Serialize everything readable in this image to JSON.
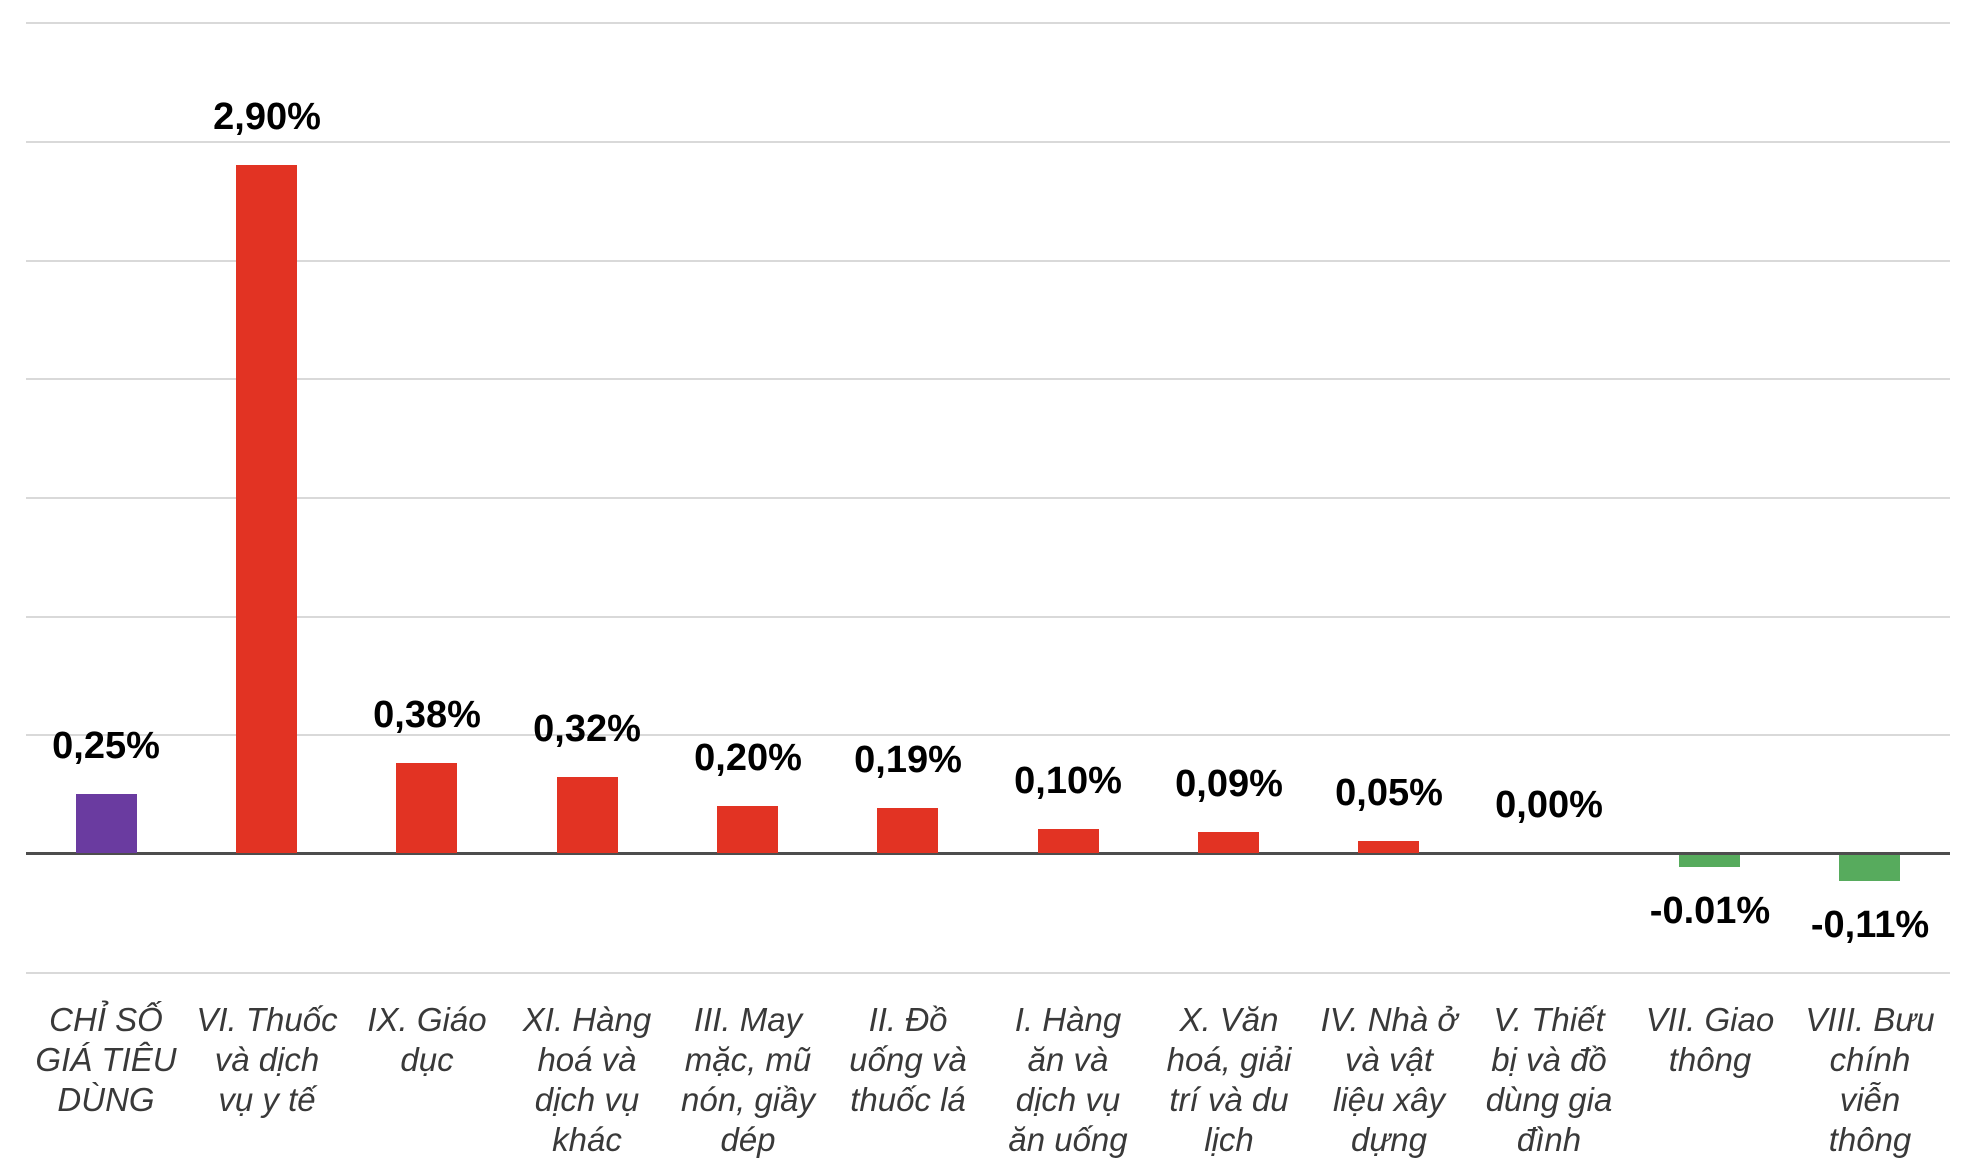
{
  "chart_data": {
    "type": "bar",
    "title": "",
    "xlabel": "",
    "ylabel": "",
    "legend": "none",
    "grid": true,
    "grid_step": 0.5,
    "ylim": [
      -0.5,
      3.5
    ],
    "zero_axis": true,
    "unit": "%",
    "categories": [
      "CHỈ SỐ GIÁ TIÊU DÙNG",
      "VI. Thuốc và dịch vụ y tế",
      "IX. Giáo dục",
      "XI. Hàng hoá và dịch vụ khác",
      "III. May mặc, mũ nón, giầy dép",
      "II. Đồ uống và thuốc lá",
      "I. Hàng ăn và dịch vụ ăn uống",
      "X. Văn hoá, giải trí và du lịch",
      "IV. Nhà ở và vật liệu xây dựng",
      "V. Thiết bị và đồ dùng gia đình",
      "VII. Giao thông",
      "VIII. Bưu chính viễn thông"
    ],
    "category_tick_lines": [
      "CHỈ SỐ\nGIÁ TIÊU\nDÙNG",
      "VI. Thuốc\nvà dịch\nvụ y tế",
      "IX. Giáo\ndục",
      "XI. Hàng\nhoá và\ndịch vụ\nkhác",
      "III. May\nmặc, mũ\nnón, giầy\ndép",
      "II. Đồ\nuống và\nthuốc lá",
      "I. Hàng\năn và\ndịch vụ\năn uống",
      "X. Văn\nhoá, giải\ntrí và du\nlịch",
      "IV. Nhà ở\nvà vật\nliệu xây\ndựng",
      "V. Thiết\nbị và đồ\ndùng gia\nđình",
      "VII. Giao\nthông",
      "VIII. Bưu\nchính\nviễn\nthông"
    ],
    "values": [
      0.25,
      2.9,
      0.38,
      0.32,
      0.2,
      0.19,
      0.1,
      0.09,
      0.05,
      0.0,
      -0.01,
      -0.11
    ],
    "data_labels": [
      "0,25%",
      "2,90%",
      "0,38%",
      "0,32%",
      "0,20%",
      "0,19%",
      "0,10%",
      "0,09%",
      "0,05%",
      "0,00%",
      "-0.01%",
      "-0,11%"
    ],
    "bar_color_keys": [
      "cpi",
      "increase",
      "increase",
      "increase",
      "increase",
      "increase",
      "increase",
      "increase",
      "increase",
      "increase",
      "decrease",
      "decrease"
    ]
  },
  "colors": {
    "cpi": "#6a3ba0",
    "increase": "#e23323",
    "decrease": "#57ab5d",
    "gridline": "#d9d9d9",
    "zero_axis": "#4d4d4d",
    "value_text": "#000000",
    "category_text": "#393939"
  }
}
